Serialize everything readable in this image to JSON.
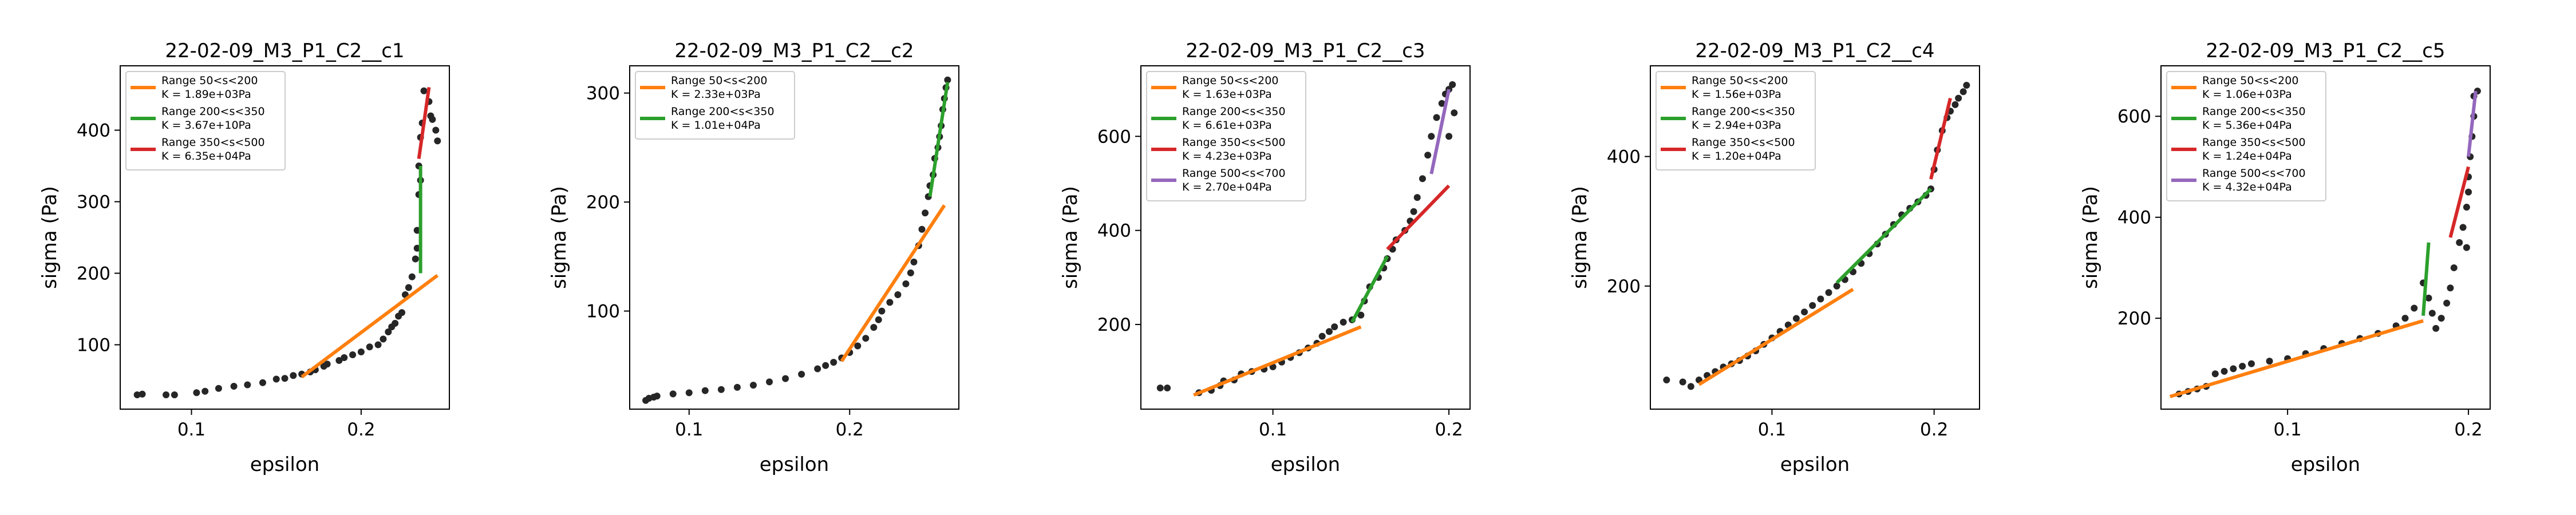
{
  "figure": {
    "background": "#ffffff"
  },
  "chart_data": [
    {
      "type": "scatter",
      "title": "22-02-09_M3_P1_C2__c1",
      "xlabel": "epsilon",
      "ylabel": "sigma (Pa)",
      "xlim": [
        0.058,
        0.252
      ],
      "ylim": [
        10,
        490
      ],
      "xticks": [
        0.1,
        0.2
      ],
      "xtick_labels": [
        "0.1",
        "0.2"
      ],
      "yticks": [
        100,
        200,
        300,
        400
      ],
      "ytick_labels": [
        "100",
        "200",
        "300",
        "400"
      ],
      "legend_position": "top-left",
      "points": [
        [
          0.068,
          30
        ],
        [
          0.071,
          31
        ],
        [
          0.085,
          30
        ],
        [
          0.09,
          30
        ],
        [
          0.103,
          33
        ],
        [
          0.108,
          35
        ],
        [
          0.116,
          39
        ],
        [
          0.125,
          42
        ],
        [
          0.133,
          44
        ],
        [
          0.142,
          47
        ],
        [
          0.15,
          52
        ],
        [
          0.155,
          53
        ],
        [
          0.16,
          57
        ],
        [
          0.165,
          59
        ],
        [
          0.17,
          62
        ],
        [
          0.173,
          65
        ],
        [
          0.178,
          70
        ],
        [
          0.18,
          73
        ],
        [
          0.187,
          78
        ],
        [
          0.19,
          82
        ],
        [
          0.195,
          86
        ],
        [
          0.2,
          90
        ],
        [
          0.205,
          97
        ],
        [
          0.21,
          100
        ],
        [
          0.213,
          108
        ],
        [
          0.216,
          118
        ],
        [
          0.218,
          125
        ],
        [
          0.22,
          130
        ],
        [
          0.222,
          140
        ],
        [
          0.224,
          145
        ],
        [
          0.226,
          170
        ],
        [
          0.228,
          180
        ],
        [
          0.23,
          195
        ],
        [
          0.232,
          220
        ],
        [
          0.233,
          235
        ],
        [
          0.233,
          260
        ],
        [
          0.234,
          310
        ],
        [
          0.234,
          350
        ],
        [
          0.235,
          330
        ],
        [
          0.235,
          390
        ],
        [
          0.236,
          410
        ],
        [
          0.237,
          455
        ],
        [
          0.24,
          440
        ],
        [
          0.241,
          420
        ],
        [
          0.242,
          415
        ],
        [
          0.244,
          400
        ],
        [
          0.245,
          385
        ]
      ],
      "series": [
        {
          "name": "Range 50<s<200",
          "k_label": "K = 1.89e+03Pa",
          "color": "#ff7f0e",
          "line": [
            [
              0.165,
              55
            ],
            [
              0.245,
              197
            ]
          ]
        },
        {
          "name": "Range 200<s<350",
          "k_label": "K = 3.67e+10Pa",
          "color": "#2ca02c",
          "line": [
            [
              0.235,
              200
            ],
            [
              0.235,
              350
            ]
          ]
        },
        {
          "name": "Range 350<s<500",
          "k_label": "K = 6.35e+04Pa",
          "color": "#d62728",
          "line": [
            [
              0.234,
              360
            ],
            [
              0.24,
              460
            ]
          ]
        }
      ]
    },
    {
      "type": "scatter",
      "title": "22-02-09_M3_P1_C2__c2",
      "xlabel": "epsilon",
      "ylabel": "sigma (Pa)",
      "xlim": [
        0.063,
        0.268
      ],
      "ylim": [
        10,
        325
      ],
      "xticks": [
        0.1,
        0.2
      ],
      "xtick_labels": [
        "0.1",
        "0.2"
      ],
      "yticks": [
        100,
        200,
        300
      ],
      "ytick_labels": [
        "100",
        "200",
        "300"
      ],
      "legend_position": "top-left",
      "points": [
        [
          0.073,
          18
        ],
        [
          0.075,
          20
        ],
        [
          0.078,
          21
        ],
        [
          0.08,
          22
        ],
        [
          0.09,
          24
        ],
        [
          0.1,
          25
        ],
        [
          0.11,
          27
        ],
        [
          0.12,
          28
        ],
        [
          0.13,
          30
        ],
        [
          0.14,
          32
        ],
        [
          0.15,
          35
        ],
        [
          0.16,
          38
        ],
        [
          0.17,
          42
        ],
        [
          0.18,
          47
        ],
        [
          0.185,
          50
        ],
        [
          0.19,
          53
        ],
        [
          0.195,
          57
        ],
        [
          0.2,
          62
        ],
        [
          0.205,
          68
        ],
        [
          0.21,
          75
        ],
        [
          0.215,
          85
        ],
        [
          0.218,
          92
        ],
        [
          0.22,
          100
        ],
        [
          0.225,
          108
        ],
        [
          0.23,
          115
        ],
        [
          0.235,
          125
        ],
        [
          0.238,
          135
        ],
        [
          0.24,
          145
        ],
        [
          0.243,
          160
        ],
        [
          0.245,
          175
        ],
        [
          0.247,
          190
        ],
        [
          0.249,
          205
        ],
        [
          0.25,
          215
        ],
        [
          0.252,
          225
        ],
        [
          0.253,
          240
        ],
        [
          0.255,
          250
        ],
        [
          0.256,
          260
        ],
        [
          0.257,
          270
        ],
        [
          0.258,
          285
        ],
        [
          0.259,
          295
        ],
        [
          0.26,
          305
        ],
        [
          0.261,
          312
        ]
      ],
      "series": [
        {
          "name": "Range 50<s<200",
          "k_label": "K = 2.33e+03Pa",
          "color": "#ff7f0e",
          "line": [
            [
              0.195,
              54
            ],
            [
              0.259,
              197
            ]
          ]
        },
        {
          "name": "Range 200<s<350",
          "k_label": "K = 1.01e+04Pa",
          "color": "#2ca02c",
          "line": [
            [
              0.25,
              205
            ],
            [
              0.261,
              310
            ]
          ]
        }
      ]
    },
    {
      "type": "scatter",
      "title": "22-02-09_M3_P1_C2__c3",
      "xlabel": "epsilon",
      "ylabel": "sigma (Pa)",
      "xlim": [
        0.025,
        0.212
      ],
      "ylim": [
        20,
        750
      ],
      "xticks": [
        0.1,
        0.2
      ],
      "xtick_labels": [
        "0.1",
        "0.2"
      ],
      "yticks": [
        200,
        400,
        600
      ],
      "ytick_labels": [
        "200",
        "400",
        "600"
      ],
      "legend_position": "top-left",
      "points": [
        [
          0.036,
          65
        ],
        [
          0.04,
          65
        ],
        [
          0.058,
          55
        ],
        [
          0.065,
          60
        ],
        [
          0.07,
          70
        ],
        [
          0.072,
          80
        ],
        [
          0.078,
          82
        ],
        [
          0.082,
          95
        ],
        [
          0.088,
          100
        ],
        [
          0.095,
          105
        ],
        [
          0.1,
          110
        ],
        [
          0.105,
          120
        ],
        [
          0.11,
          130
        ],
        [
          0.115,
          140
        ],
        [
          0.12,
          150
        ],
        [
          0.125,
          160
        ],
        [
          0.128,
          175
        ],
        [
          0.132,
          185
        ],
        [
          0.135,
          195
        ],
        [
          0.14,
          205
        ],
        [
          0.145,
          210
        ],
        [
          0.15,
          220
        ],
        [
          0.152,
          250
        ],
        [
          0.155,
          280
        ],
        [
          0.16,
          300
        ],
        [
          0.163,
          320
        ],
        [
          0.165,
          340
        ],
        [
          0.168,
          360
        ],
        [
          0.17,
          380
        ],
        [
          0.175,
          400
        ],
        [
          0.178,
          420
        ],
        [
          0.18,
          440
        ],
        [
          0.182,
          470
        ],
        [
          0.185,
          510
        ],
        [
          0.188,
          560
        ],
        [
          0.19,
          600
        ],
        [
          0.193,
          640
        ],
        [
          0.196,
          670
        ],
        [
          0.198,
          690
        ],
        [
          0.2,
          700
        ],
        [
          0.202,
          710
        ],
        [
          0.203,
          650
        ],
        [
          0.2,
          600
        ]
      ],
      "series": [
        {
          "name": "Range 50<s<200",
          "k_label": "K = 1.63e+03Pa",
          "color": "#ff7f0e",
          "line": [
            [
              0.055,
              50
            ],
            [
              0.15,
              195
            ]
          ]
        },
        {
          "name": "Range 200<s<350",
          "k_label": "K = 6.61e+03Pa",
          "color": "#2ca02c",
          "line": [
            [
              0.145,
              205
            ],
            [
              0.165,
              345
            ]
          ]
        },
        {
          "name": "Range 350<s<500",
          "k_label": "K = 4.23e+03Pa",
          "color": "#d62728",
          "line": [
            [
              0.165,
              360
            ],
            [
              0.2,
              495
            ]
          ]
        },
        {
          "name": "Range 500<s<700",
          "k_label": "K = 2.70e+04Pa",
          "color": "#9467bd",
          "line": [
            [
              0.19,
              520
            ],
            [
              0.2,
              700
            ]
          ]
        }
      ]
    },
    {
      "type": "scatter",
      "title": "22-02-09_M3_P1_C2__c4",
      "xlabel": "epsilon",
      "ylabel": "sigma (Pa)",
      "xlim": [
        0.025,
        0.228
      ],
      "ylim": [
        10,
        540
      ],
      "xticks": [
        0.1,
        0.2
      ],
      "xtick_labels": [
        "0.1",
        "0.2"
      ],
      "yticks": [
        200,
        400
      ],
      "ytick_labels": [
        "200",
        "400"
      ],
      "legend_position": "top-left",
      "points": [
        [
          0.035,
          55
        ],
        [
          0.045,
          52
        ],
        [
          0.05,
          45
        ],
        [
          0.055,
          55
        ],
        [
          0.06,
          62
        ],
        [
          0.065,
          68
        ],
        [
          0.07,
          75
        ],
        [
          0.075,
          80
        ],
        [
          0.08,
          85
        ],
        [
          0.085,
          92
        ],
        [
          0.09,
          100
        ],
        [
          0.095,
          110
        ],
        [
          0.1,
          120
        ],
        [
          0.105,
          130
        ],
        [
          0.11,
          140
        ],
        [
          0.115,
          150
        ],
        [
          0.12,
          160
        ],
        [
          0.125,
          170
        ],
        [
          0.13,
          180
        ],
        [
          0.135,
          190
        ],
        [
          0.14,
          200
        ],
        [
          0.145,
          210
        ],
        [
          0.15,
          222
        ],
        [
          0.155,
          235
        ],
        [
          0.16,
          250
        ],
        [
          0.165,
          265
        ],
        [
          0.17,
          280
        ],
        [
          0.175,
          295
        ],
        [
          0.18,
          310
        ],
        [
          0.185,
          320
        ],
        [
          0.19,
          330
        ],
        [
          0.195,
          340
        ],
        [
          0.198,
          350
        ],
        [
          0.2,
          380
        ],
        [
          0.202,
          410
        ],
        [
          0.205,
          440
        ],
        [
          0.208,
          460
        ],
        [
          0.21,
          470
        ],
        [
          0.213,
          480
        ],
        [
          0.215,
          490
        ],
        [
          0.218,
          500
        ],
        [
          0.22,
          510
        ]
      ],
      "series": [
        {
          "name": "Range 50<s<200",
          "k_label": "K = 1.56e+03Pa",
          "color": "#ff7f0e",
          "line": [
            [
              0.055,
              48
            ],
            [
              0.15,
              195
            ]
          ]
        },
        {
          "name": "Range 200<s<350",
          "k_label": "K = 2.94e+03Pa",
          "color": "#2ca02c",
          "line": [
            [
              0.14,
              205
            ],
            [
              0.198,
              350
            ]
          ]
        },
        {
          "name": "Range 350<s<500",
          "k_label": "K = 1.20e+04Pa",
          "color": "#d62728",
          "line": [
            [
              0.198,
              365
            ],
            [
              0.21,
              490
            ]
          ]
        }
      ]
    },
    {
      "type": "scatter",
      "title": "22-02-09_M3_P1_C2__c5",
      "xlabel": "epsilon",
      "ylabel": "sigma (Pa)",
      "xlim": [
        0.03,
        0.212
      ],
      "ylim": [
        20,
        700
      ],
      "xticks": [
        0.1,
        0.2
      ],
      "xtick_labels": [
        "0.1",
        "0.2"
      ],
      "yticks": [
        200,
        400,
        600
      ],
      "ytick_labels": [
        "200",
        "400",
        "600"
      ],
      "legend_position": "top-left",
      "points": [
        [
          0.04,
          50
        ],
        [
          0.045,
          55
        ],
        [
          0.05,
          60
        ],
        [
          0.055,
          65
        ],
        [
          0.06,
          90
        ],
        [
          0.065,
          95
        ],
        [
          0.07,
          100
        ],
        [
          0.075,
          105
        ],
        [
          0.08,
          110
        ],
        [
          0.09,
          115
        ],
        [
          0.1,
          120
        ],
        [
          0.11,
          130
        ],
        [
          0.12,
          140
        ],
        [
          0.13,
          150
        ],
        [
          0.14,
          160
        ],
        [
          0.15,
          170
        ],
        [
          0.16,
          185
        ],
        [
          0.165,
          200
        ],
        [
          0.17,
          220
        ],
        [
          0.175,
          270
        ],
        [
          0.178,
          240
        ],
        [
          0.18,
          210
        ],
        [
          0.182,
          180
        ],
        [
          0.185,
          200
        ],
        [
          0.188,
          230
        ],
        [
          0.19,
          260
        ],
        [
          0.192,
          300
        ],
        [
          0.195,
          350
        ],
        [
          0.197,
          380
        ],
        [
          0.199,
          420
        ],
        [
          0.2,
          450
        ],
        [
          0.2,
          480
        ],
        [
          0.201,
          520
        ],
        [
          0.202,
          560
        ],
        [
          0.203,
          600
        ],
        [
          0.203,
          640
        ],
        [
          0.199,
          340
        ],
        [
          0.205,
          650
        ]
      ],
      "series": [
        {
          "name": "Range 50<s<200",
          "k_label": "K = 1.06e+03Pa",
          "color": "#ff7f0e",
          "line": [
            [
              0.035,
              45
            ],
            [
              0.175,
              195
            ]
          ]
        },
        {
          "name": "Range 200<s<350",
          "k_label": "K = 5.36e+04Pa",
          "color": "#2ca02c",
          "line": [
            [
              0.175,
              205
            ],
            [
              0.178,
              350
            ]
          ]
        },
        {
          "name": "Range 350<s<500",
          "k_label": "K = 1.24e+04Pa",
          "color": "#d62728",
          "line": [
            [
              0.19,
              360
            ],
            [
              0.2,
              500
            ]
          ]
        },
        {
          "name": "Range 500<s<700",
          "k_label": "K = 4.32e+04Pa",
          "color": "#9467bd",
          "line": [
            [
              0.2,
              520
            ],
            [
              0.204,
              650
            ]
          ]
        }
      ]
    }
  ]
}
